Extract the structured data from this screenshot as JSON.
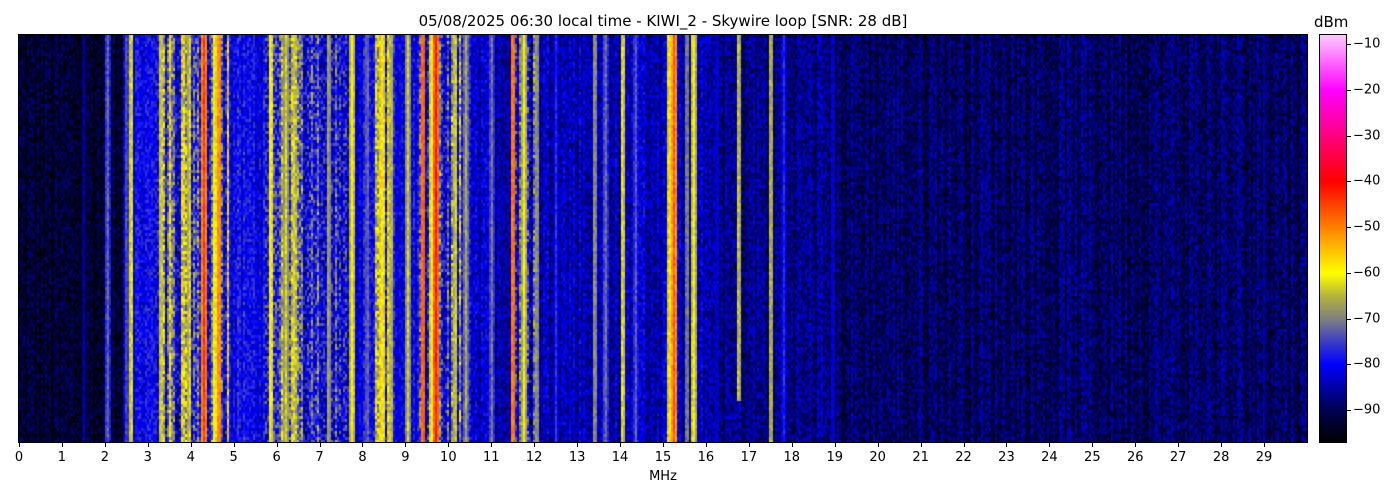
{
  "chart_data": {
    "type": "heatmap",
    "title": "05/08/2025 06:30 local time - KIWI_2 - Skywire loop [SNR: 28 dB]",
    "xlabel": "MHz",
    "ylabel": "",
    "xlim": [
      0,
      30
    ],
    "x_ticks": [
      "0",
      "1",
      "2",
      "3",
      "4",
      "5",
      "6",
      "7",
      "8",
      "9",
      "10",
      "11",
      "12",
      "13",
      "14",
      "15",
      "16",
      "17",
      "18",
      "19",
      "20",
      "21",
      "22",
      "23",
      "24",
      "25",
      "26",
      "27",
      "28",
      "29"
    ],
    "colorbar": {
      "label": "dBm",
      "range": [
        -97,
        -8
      ],
      "ticks": [
        "-10",
        "-20",
        "-30",
        "-40",
        "-50",
        "-60",
        "-70",
        "-80",
        "-90"
      ],
      "tick_values": [
        -10,
        -20,
        -30,
        -40,
        -50,
        -60,
        -70,
        -80,
        -90
      ],
      "colormap": [
        [
          -97,
          "#000000"
        ],
        [
          -90,
          "#000050"
        ],
        [
          -80,
          "#0000ff"
        ],
        [
          -75,
          "#3c3cc8"
        ],
        [
          -70,
          "#808080"
        ],
        [
          -65,
          "#b4b43c"
        ],
        [
          -60,
          "#ffff00"
        ],
        [
          -50,
          "#ff8200"
        ],
        [
          -40,
          "#ff0000"
        ],
        [
          -30,
          "#ff0080"
        ],
        [
          -20,
          "#ff00ff"
        ],
        [
          -8,
          "#ffc8ff"
        ]
      ]
    },
    "noise_floor_dbm": [
      {
        "from": 0,
        "to": 2.4,
        "dbm": -93
      },
      {
        "from": 2.4,
        "to": 10.5,
        "dbm": -80
      },
      {
        "from": 10.5,
        "to": 16,
        "dbm": -84
      },
      {
        "from": 16,
        "to": 19,
        "dbm": -87
      },
      {
        "from": 19,
        "to": 30,
        "dbm": -89
      }
    ],
    "busy_bands": [
      {
        "from": 3.2,
        "to": 4.9,
        "dbm": -66
      },
      {
        "from": 5.7,
        "to": 6.6,
        "dbm": -70
      },
      {
        "from": 6.6,
        "to": 7.8,
        "dbm": -72
      },
      {
        "from": 8.3,
        "to": 8.7,
        "dbm": -66
      },
      {
        "from": 9.3,
        "to": 10.3,
        "dbm": -70
      },
      {
        "from": 11.5,
        "to": 12.0,
        "dbm": -72
      }
    ],
    "signals": [
      {
        "mhz": 1.5,
        "dbm": -85
      },
      {
        "mhz": 2.05,
        "dbm": -71
      },
      {
        "mhz": 2.5,
        "dbm": -72
      },
      {
        "mhz": 2.6,
        "dbm": -60
      },
      {
        "mhz": 3.3,
        "dbm": -61
      },
      {
        "mhz": 3.95,
        "dbm": -62
      },
      {
        "mhz": 4.3,
        "dbm": -44
      },
      {
        "mhz": 4.55,
        "dbm": -58
      },
      {
        "mhz": 4.65,
        "dbm": -48
      },
      {
        "mhz": 5.85,
        "dbm": -58
      },
      {
        "mhz": 6.2,
        "dbm": -62
      },
      {
        "mhz": 6.4,
        "dbm": -62
      },
      {
        "mhz": 7.2,
        "dbm": -65
      },
      {
        "mhz": 7.75,
        "dbm": -59
      },
      {
        "mhz": 8.1,
        "dbm": -70
      },
      {
        "mhz": 8.45,
        "dbm": -57
      },
      {
        "mhz": 8.65,
        "dbm": -62
      },
      {
        "mhz": 9.05,
        "dbm": -63
      },
      {
        "mhz": 9.4,
        "dbm": -45
      },
      {
        "mhz": 9.6,
        "dbm": -58
      },
      {
        "mhz": 9.7,
        "dbm": -42
      },
      {
        "mhz": 10.15,
        "dbm": -61
      },
      {
        "mhz": 10.4,
        "dbm": -66
      },
      {
        "mhz": 11.0,
        "dbm": -70
      },
      {
        "mhz": 11.5,
        "dbm": -46
      },
      {
        "mhz": 11.75,
        "dbm": -60
      },
      {
        "mhz": 12.05,
        "dbm": -66
      },
      {
        "mhz": 12.5,
        "dbm": -76
      },
      {
        "mhz": 13.4,
        "dbm": -66
      },
      {
        "mhz": 13.65,
        "dbm": -70
      },
      {
        "mhz": 14.05,
        "dbm": -60
      },
      {
        "mhz": 14.35,
        "dbm": -72
      },
      {
        "mhz": 15.15,
        "dbm": -57
      },
      {
        "mhz": 15.25,
        "dbm": -46
      },
      {
        "mhz": 15.55,
        "dbm": -68
      },
      {
        "mhz": 15.7,
        "dbm": -59
      },
      {
        "mhz": 16.25,
        "dbm": -80
      },
      {
        "mhz": 16.75,
        "dbm": -62
      },
      {
        "mhz": 17.5,
        "dbm": -63
      },
      {
        "mhz": 17.8,
        "dbm": -76
      },
      {
        "mhz": 18.95,
        "dbm": -80
      },
      {
        "mhz": 29.0,
        "dbm": -84
      }
    ]
  }
}
